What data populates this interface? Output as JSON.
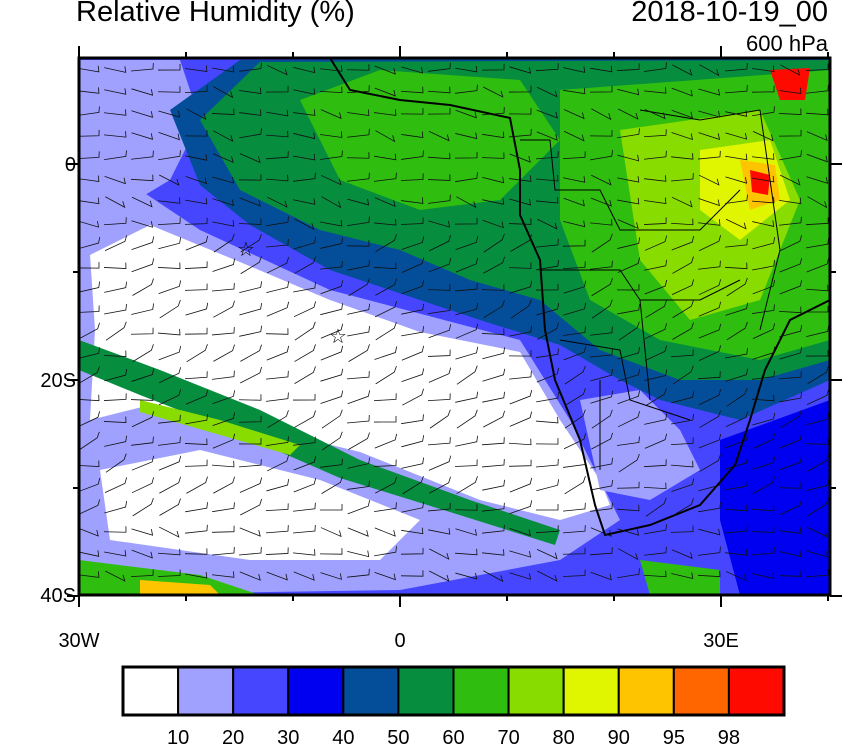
{
  "header": {
    "title": "Relative Humidity (%)",
    "date": "2018-10-19_00",
    "level": "600 hPa"
  },
  "axes": {
    "lon_labels": [
      "30W",
      "0",
      "30E"
    ],
    "lat_labels": [
      "0",
      "20S",
      "40S"
    ],
    "lon_range": [
      -30,
      40
    ],
    "lat_range": [
      -40,
      10
    ]
  },
  "colorbar": {
    "labels": [
      "10",
      "20",
      "30",
      "40",
      "50",
      "60",
      "70",
      "80",
      "90",
      "95",
      "98"
    ],
    "colors": [
      "#ffffff",
      "#a0a0ff",
      "#4646ff",
      "#0000f0",
      "#044e99",
      "#068d3e",
      "#2fbd10",
      "#88dc00",
      "#e0f500",
      "#ffc400",
      "#ff6600",
      "#ff0a00"
    ]
  },
  "markers": [
    {
      "symbol": "star",
      "lon": -14.5,
      "lat": -8
    },
    {
      "symbol": "star",
      "lon": -5.8,
      "lat": -16
    }
  ]
}
